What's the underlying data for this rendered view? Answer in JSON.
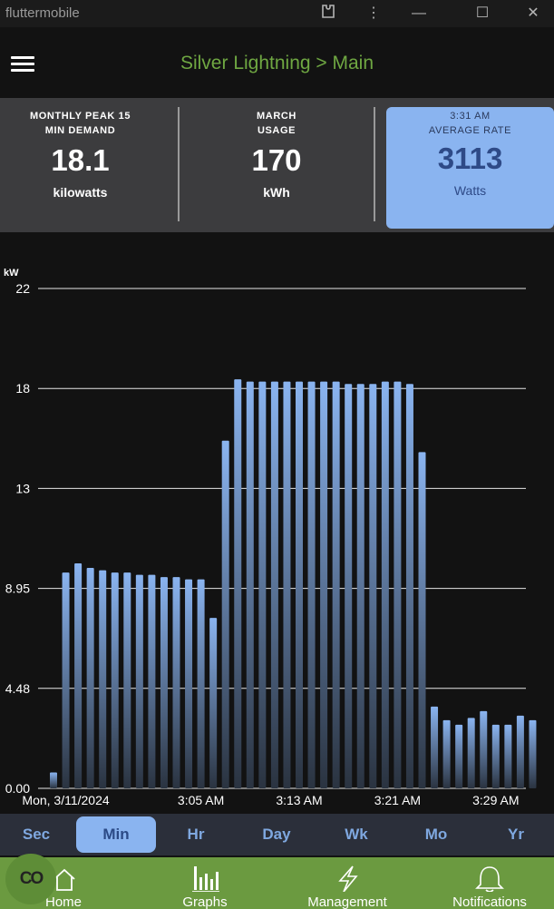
{
  "window": {
    "title": "fluttermobile"
  },
  "appbar": {
    "title": "Silver Lightning > Main"
  },
  "stats": [
    {
      "label1": "MONTHLY PEAK 15",
      "label2": "MIN DEMAND",
      "value": "18.1",
      "unit": "kilowatts"
    },
    {
      "label1": "MARCH",
      "label2": "USAGE",
      "value": "170",
      "unit": "kWh"
    },
    {
      "label1": "3:31 AM",
      "label2": "AVERAGE RATE",
      "value": "3113",
      "unit": "Watts"
    }
  ],
  "tabs": [
    "Sec",
    "Min",
    "Hr",
    "Day",
    "Wk",
    "Mo",
    "Yr"
  ],
  "active_tab": "Min",
  "nav": [
    {
      "label": "Home",
      "icon": "home-icon"
    },
    {
      "label": "Graphs",
      "icon": "bar-chart-icon"
    },
    {
      "label": "Management",
      "icon": "lightning-icon"
    },
    {
      "label": "Notifications",
      "icon": "bell-icon"
    }
  ],
  "fab": {
    "label": "CO",
    "icon": "link-icon"
  },
  "colors": {
    "accent_green": "#6fa742",
    "nav_green": "#6b9a40",
    "highlight_blue": "#8ab4f0",
    "bar_top": "#8ab4f0",
    "bar_bottom": "#2a3340"
  },
  "chart_data": {
    "type": "bar",
    "ylabel": "kW",
    "yticks": [
      "22",
      "18",
      "13",
      "8.95",
      "4.48",
      "0.00"
    ],
    "ylim": [
      0,
      22
    ],
    "xticks": [
      {
        "label": "Mon, 3/11/2024",
        "index": 1
      },
      {
        "label": "3:05 AM",
        "index": 12
      },
      {
        "label": "3:13 AM",
        "index": 20
      },
      {
        "label": "3:21 AM",
        "index": 28
      },
      {
        "label": "3:29 AM",
        "index": 36
      }
    ],
    "values": [
      0.7,
      9.5,
      9.9,
      9.7,
      9.6,
      9.5,
      9.5,
      9.4,
      9.4,
      9.3,
      9.3,
      9.2,
      9.2,
      7.5,
      15.3,
      18.0,
      17.9,
      17.9,
      17.9,
      17.9,
      17.9,
      17.9,
      17.9,
      17.9,
      17.8,
      17.8,
      17.8,
      17.9,
      17.9,
      17.8,
      14.8,
      3.6,
      3.0,
      2.8,
      3.1,
      3.4,
      2.8,
      2.8,
      3.2,
      3.0
    ],
    "grid": true
  }
}
